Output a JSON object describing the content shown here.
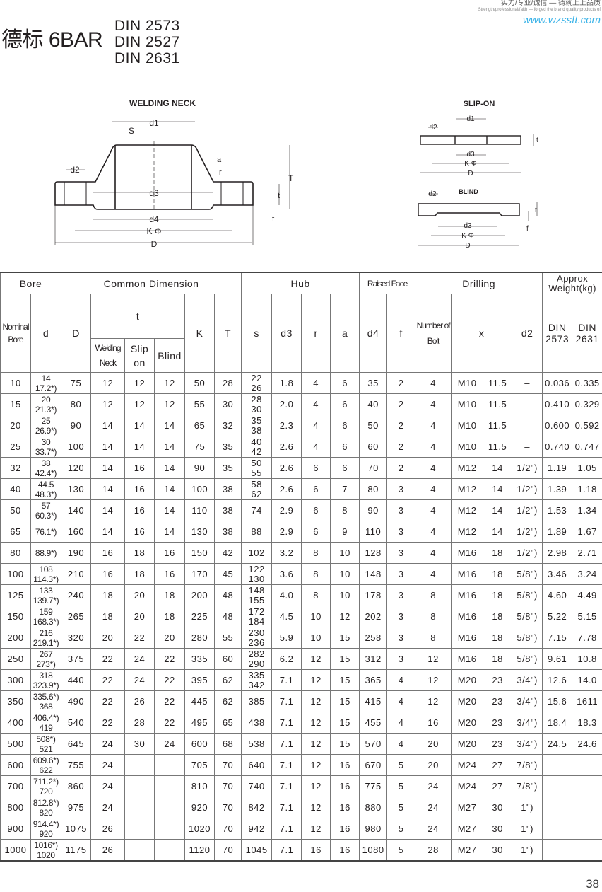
{
  "header": {
    "tagline_cn": "实力/专业/诚信 — 铸就上上品质",
    "tagline_en": "Strength/professional/faith — forged the brand quality products of",
    "website": "www.wzssft.com",
    "title": "德标 6BAR",
    "standards": [
      "DIN 2573",
      "DIN 2527",
      "DIN 2631"
    ]
  },
  "drawings": {
    "welding_neck": {
      "title": "WELDING NECK",
      "labels": {
        "d1": "d1",
        "s": "S",
        "d2": "d2",
        "d3": "d3",
        "d4": "d4",
        "k": "K Φ",
        "d": "D",
        "a": "a",
        "r": "r",
        "T": "T",
        "t": "t",
        "f": "f"
      }
    },
    "slip_on": {
      "title": "SLIP-ON",
      "labels": {
        "d1": "d1",
        "d2": "d2",
        "d3": "d3",
        "k": "K Φ",
        "d": "D",
        "t": "t"
      }
    },
    "blind": {
      "title": "BLIND",
      "labels": {
        "d2": "d2",
        "d3": "d3",
        "k": "K Φ",
        "d": "D",
        "t": "t",
        "f": "f"
      }
    }
  },
  "table": {
    "groups": {
      "bore": "Bore",
      "common": "Common Dimension",
      "hub": "Hub",
      "raised": "Raised Face",
      "drilling": "Drilling",
      "weight": "Approx Weight(kg)"
    },
    "cols": {
      "nominal": "Nominal Bore",
      "d": "d",
      "D": "D",
      "t": "t",
      "wn": "Welding Neck",
      "so": "Slip on",
      "blind": "Blind",
      "K": "K",
      "T": "T",
      "s": "s",
      "d3": "d3",
      "r": "r",
      "a": "a",
      "d4": "d4",
      "f": "f",
      "bolts": "Number of Bolt",
      "x": "x",
      "d2": "d2",
      "w1": "DIN 2573",
      "w2": "DIN 2631"
    },
    "rows": [
      [
        "10",
        "14\n17.2*)",
        "75",
        "12",
        "12",
        "12",
        "50",
        "28",
        "22\n26",
        "1.8",
        "4",
        "6",
        "35",
        "2",
        "4",
        "M10",
        "11.5",
        "–",
        "0.036",
        "0.335"
      ],
      [
        "15",
        "20\n21.3*)",
        "80",
        "12",
        "12",
        "12",
        "55",
        "30",
        "28\n30",
        "2.0",
        "4",
        "6",
        "40",
        "2",
        "4",
        "M10",
        "11.5",
        "–",
        "0.410",
        "0.329"
      ],
      [
        "20",
        "25\n26.9*)",
        "90",
        "14",
        "14",
        "14",
        "65",
        "32",
        "35\n38",
        "2.3",
        "4",
        "6",
        "50",
        "2",
        "4",
        "M10",
        "11.5",
        "",
        "0.600",
        "0.592"
      ],
      [
        "25",
        "30\n33.7*)",
        "100",
        "14",
        "14",
        "14",
        "75",
        "35",
        "40\n42",
        "2.6",
        "4",
        "6",
        "60",
        "2",
        "4",
        "M10",
        "11.5",
        "–",
        "0.740",
        "0.747"
      ],
      [
        "32",
        "38\n42.4*)",
        "120",
        "14",
        "16",
        "14",
        "90",
        "35",
        "50\n55",
        "2.6",
        "6",
        "6",
        "70",
        "2",
        "4",
        "M12",
        "14",
        "1/2\")",
        "1.19",
        "1.05"
      ],
      [
        "40",
        "44.5\n48.3*)",
        "130",
        "14",
        "16",
        "14",
        "100",
        "38",
        "58\n62",
        "2.6",
        "6",
        "7",
        "80",
        "3",
        "4",
        "M12",
        "14",
        "1/2\")",
        "1.39",
        "1.18"
      ],
      [
        "50",
        "57\n60.3*)",
        "140",
        "14",
        "16",
        "14",
        "110",
        "38",
        "74",
        "2.9",
        "6",
        "8",
        "90",
        "3",
        "4",
        "M12",
        "14",
        "1/2\")",
        "1.53",
        "1.34"
      ],
      [
        "65",
        "76.1*)",
        "160",
        "14",
        "16",
        "14",
        "130",
        "38",
        "88",
        "2.9",
        "6",
        "9",
        "110",
        "3",
        "4",
        "M12",
        "14",
        "1/2\")",
        "1.89",
        "1.67"
      ],
      [
        "80",
        "88.9*)",
        "190",
        "16",
        "18",
        "16",
        "150",
        "42",
        "102",
        "3.2",
        "8",
        "10",
        "128",
        "3",
        "4",
        "M16",
        "18",
        "1/2\")",
        "2.98",
        "2.71"
      ],
      [
        "100",
        "108\n114.3*)",
        "210",
        "16",
        "18",
        "16",
        "170",
        "45",
        "122\n130",
        "3.6",
        "8",
        "10",
        "148",
        "3",
        "4",
        "M16",
        "18",
        "5/8\")",
        "3.46",
        "3.24"
      ],
      [
        "125",
        "133\n139.7*)",
        "240",
        "18",
        "20",
        "18",
        "200",
        "48",
        "148\n155",
        "4.0",
        "8",
        "10",
        "178",
        "3",
        "8",
        "M16",
        "18",
        "5/8\")",
        "4.60",
        "4.49"
      ],
      [
        "150",
        "159\n168.3*)",
        "265",
        "18",
        "20",
        "18",
        "225",
        "48",
        "172\n184",
        "4.5",
        "10",
        "12",
        "202",
        "3",
        "8",
        "M16",
        "18",
        "5/8\")",
        "5.22",
        "5.15"
      ],
      [
        "200",
        "216\n219.1*)",
        "320",
        "20",
        "22",
        "20",
        "280",
        "55",
        "230\n236",
        "5.9",
        "10",
        "15",
        "258",
        "3",
        "8",
        "M16",
        "18",
        "5/8\")",
        "7.15",
        "7.78"
      ],
      [
        "250",
        "267\n273*)",
        "375",
        "22",
        "24",
        "22",
        "335",
        "60",
        "282\n290",
        "6.2",
        "12",
        "15",
        "312",
        "3",
        "12",
        "M16",
        "18",
        "5/8\")",
        "9.61",
        "10.8"
      ],
      [
        "300",
        "318\n323.9*)",
        "440",
        "22",
        "24",
        "22",
        "395",
        "62",
        "335\n342",
        "7.1",
        "12",
        "15",
        "365",
        "4",
        "12",
        "M20",
        "23",
        "3/4\")",
        "12.6",
        "14.0"
      ],
      [
        "350",
        "335.6*)\n368",
        "490",
        "22",
        "26",
        "22",
        "445",
        "62",
        "385",
        "7.1",
        "12",
        "15",
        "415",
        "4",
        "12",
        "M20",
        "23",
        "3/4\")",
        "15.6",
        "1611"
      ],
      [
        "400",
        "406.4*)\n419",
        "540",
        "22",
        "28",
        "22",
        "495",
        "65",
        "438",
        "7.1",
        "12",
        "15",
        "455",
        "4",
        "16",
        "M20",
        "23",
        "3/4\")",
        "18.4",
        "18.3"
      ],
      [
        "500",
        "508*)\n521",
        "645",
        "24",
        "30",
        "24",
        "600",
        "68",
        "538",
        "7.1",
        "12",
        "15",
        "570",
        "4",
        "20",
        "M20",
        "23",
        "3/4\")",
        "24.5",
        "24.6"
      ],
      [
        "600",
        "609.6*)\n622",
        "755",
        "24",
        "",
        "",
        "705",
        "70",
        "640",
        "7.1",
        "12",
        "16",
        "670",
        "5",
        "20",
        "M24",
        "27",
        "7/8\")",
        "",
        ""
      ],
      [
        "700",
        "711.2*)\n720",
        "860",
        "24",
        "",
        "",
        "810",
        "70",
        "740",
        "7.1",
        "12",
        "16",
        "775",
        "5",
        "24",
        "M24",
        "27",
        "7/8\")",
        "",
        ""
      ],
      [
        "800",
        "812.8*)\n820",
        "975",
        "24",
        "",
        "",
        "920",
        "70",
        "842",
        "7.1",
        "12",
        "16",
        "880",
        "5",
        "24",
        "M27",
        "30",
        "1\")",
        "",
        ""
      ],
      [
        "900",
        "914.4*)\n920",
        "1075",
        "26",
        "",
        "",
        "1020",
        "70",
        "942",
        "7.1",
        "12",
        "16",
        "980",
        "5",
        "24",
        "M27",
        "30",
        "1\")",
        "",
        ""
      ],
      [
        "1000",
        "1016*)\n1020",
        "1175",
        "26",
        "",
        "",
        "1120",
        "70",
        "1045",
        "7.1",
        "16",
        "16",
        "1080",
        "5",
        "28",
        "M27",
        "30",
        "1\")",
        "",
        ""
      ]
    ]
  },
  "page_number": "38"
}
